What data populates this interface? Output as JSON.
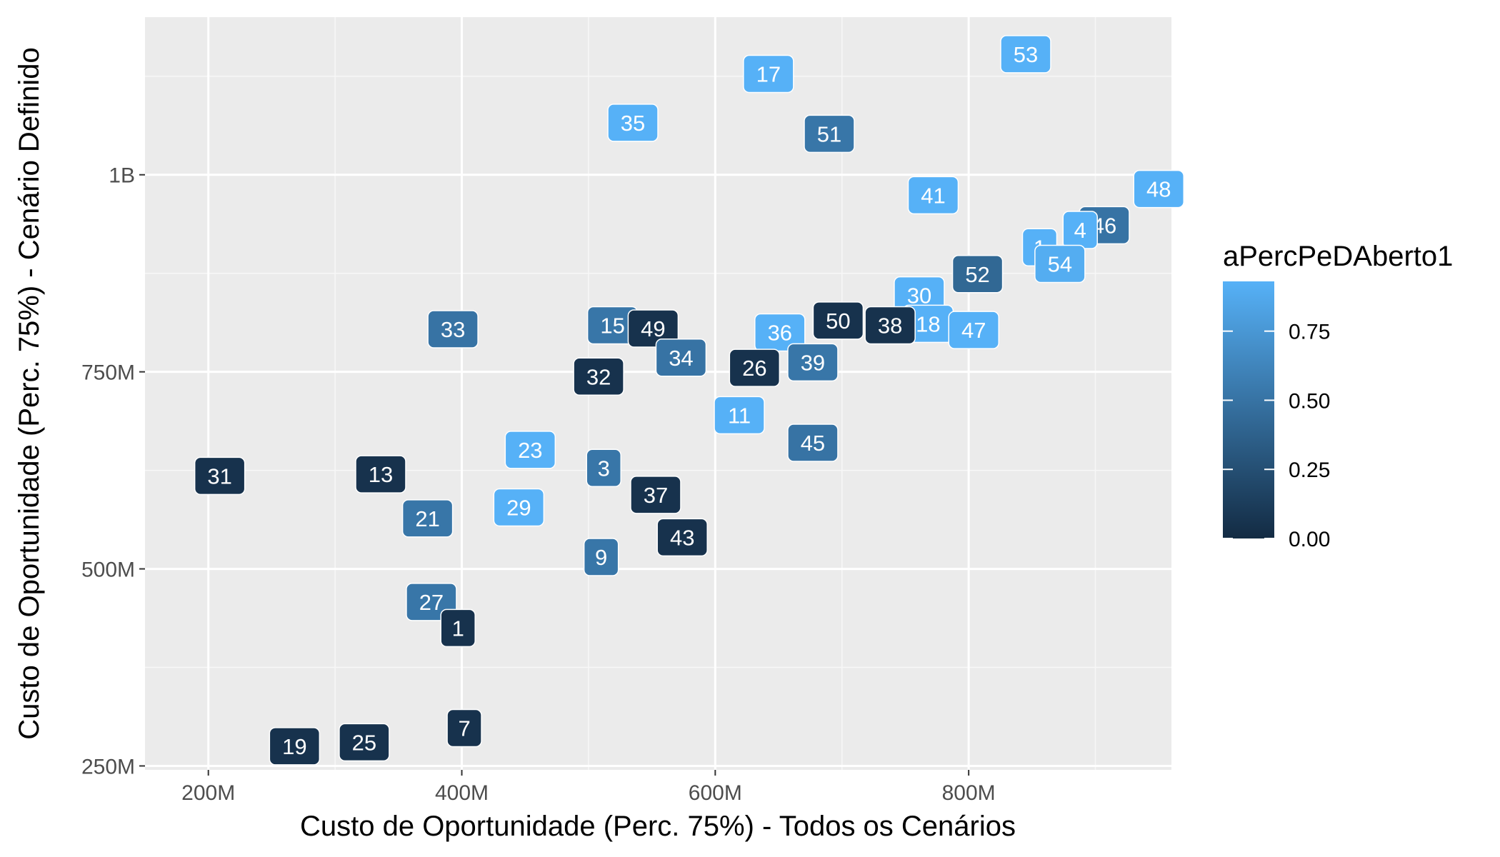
{
  "chart_data": {
    "type": "scatter",
    "title": "",
    "xlabel": "Custo de Oportunidade (Perc. 75%) - Todos os Cenários",
    "ylabel": "Custo de Oportunidade (Perc. 75%) - Cenário Definido",
    "xlim": [
      150000000,
      960000000
    ],
    "ylim": [
      245000000,
      1200000000
    ],
    "x_ticks": [
      {
        "value": 200000000,
        "label": "200M"
      },
      {
        "value": 400000000,
        "label": "400M"
      },
      {
        "value": 600000000,
        "label": "600M"
      },
      {
        "value": 800000000,
        "label": "800M"
      }
    ],
    "y_ticks": [
      {
        "value": 250000000,
        "label": "250M"
      },
      {
        "value": 500000000,
        "label": "500M"
      },
      {
        "value": 750000000,
        "label": "750M"
      },
      {
        "value": 1000000000,
        "label": "1B"
      }
    ],
    "grid": true,
    "color_scale": {
      "name": "aPercPeDAberto1",
      "low_color": "#132B43",
      "high_color": "#56B1F7",
      "range": [
        0,
        0.93
      ],
      "breaks": [
        {
          "value": 0.0,
          "label": "0.00"
        },
        {
          "value": 0.25,
          "label": "0.25"
        },
        {
          "value": 0.5,
          "label": "0.50"
        },
        {
          "value": 0.75,
          "label": "0.75"
        }
      ],
      "legend_position": "right"
    },
    "points": [
      {
        "label": "53",
        "x": 845000000,
        "y": 1153000000,
        "color_value": 0.93
      },
      {
        "label": "17",
        "x": 642000000,
        "y": 1128000000,
        "color_value": 0.93
      },
      {
        "label": "35",
        "x": 535000000,
        "y": 1066000000,
        "color_value": 0.93
      },
      {
        "label": "51",
        "x": 690000000,
        "y": 1052000000,
        "color_value": 0.52
      },
      {
        "label": "48",
        "x": 950000000,
        "y": 982000000,
        "color_value": 0.93
      },
      {
        "label": "41",
        "x": 772000000,
        "y": 974000000,
        "color_value": 0.93
      },
      {
        "label": "46",
        "x": 907000000,
        "y": 936000000,
        "color_value": 0.5
      },
      {
        "label": "4",
        "x": 888000000,
        "y": 930000000,
        "color_value": 0.93
      },
      {
        "label": "1",
        "x": 856000000,
        "y": 908000000,
        "color_value": 0.93
      },
      {
        "label": "54",
        "x": 872000000,
        "y": 887000000,
        "color_value": 0.9
      },
      {
        "label": "52",
        "x": 807000000,
        "y": 874000000,
        "color_value": 0.42
      },
      {
        "label": "30",
        "x": 761000000,
        "y": 847000000,
        "color_value": 0.93
      },
      {
        "label": "18",
        "x": 768000000,
        "y": 811000000,
        "color_value": 0.93
      },
      {
        "label": "47",
        "x": 804000000,
        "y": 803000000,
        "color_value": 0.93
      },
      {
        "label": "33",
        "x": 393000000,
        "y": 804000000,
        "color_value": 0.5
      },
      {
        "label": "15",
        "x": 519000000,
        "y": 809000000,
        "color_value": 0.52
      },
      {
        "label": "49",
        "x": 551000000,
        "y": 805000000,
        "color_value": 0.05
      },
      {
        "label": "50",
        "x": 697000000,
        "y": 815000000,
        "color_value": 0.05
      },
      {
        "label": "38",
        "x": 738000000,
        "y": 809000000,
        "color_value": 0.05
      },
      {
        "label": "36",
        "x": 651000000,
        "y": 800000000,
        "color_value": 0.93
      },
      {
        "label": "34",
        "x": 573000000,
        "y": 768000000,
        "color_value": 0.5
      },
      {
        "label": "39",
        "x": 677000000,
        "y": 762000000,
        "color_value": 0.52
      },
      {
        "label": "26",
        "x": 631000000,
        "y": 755000000,
        "color_value": 0.05
      },
      {
        "label": "32",
        "x": 508000000,
        "y": 744000000,
        "color_value": 0.05
      },
      {
        "label": "11",
        "x": 619000000,
        "y": 695000000,
        "color_value": 0.93
      },
      {
        "label": "45",
        "x": 677000000,
        "y": 660000000,
        "color_value": 0.5
      },
      {
        "label": "23",
        "x": 454000000,
        "y": 651000000,
        "color_value": 0.93
      },
      {
        "label": "3",
        "x": 512000000,
        "y": 628000000,
        "color_value": 0.52
      },
      {
        "label": "31",
        "x": 209000000,
        "y": 618000000,
        "color_value": 0.05
      },
      {
        "label": "13",
        "x": 336000000,
        "y": 620000000,
        "color_value": 0.05
      },
      {
        "label": "37",
        "x": 553000000,
        "y": 594000000,
        "color_value": 0.05
      },
      {
        "label": "29",
        "x": 445000000,
        "y": 578000000,
        "color_value": 0.93
      },
      {
        "label": "21",
        "x": 373000000,
        "y": 564000000,
        "color_value": 0.52
      },
      {
        "label": "43",
        "x": 574000000,
        "y": 540000000,
        "color_value": 0.05
      },
      {
        "label": "9",
        "x": 510000000,
        "y": 515000000,
        "color_value": 0.52
      },
      {
        "label": "27",
        "x": 376000000,
        "y": 458000000,
        "color_value": 0.52
      },
      {
        "label": "1",
        "x": 397000000,
        "y": 425000000,
        "color_value": 0.05
      },
      {
        "label": "7",
        "x": 402000000,
        "y": 298000000,
        "color_value": 0.05
      },
      {
        "label": "19",
        "x": 268000000,
        "y": 275000000,
        "color_value": 0.05
      },
      {
        "label": "25",
        "x": 323000000,
        "y": 280000000,
        "color_value": 0.05
      }
    ]
  }
}
